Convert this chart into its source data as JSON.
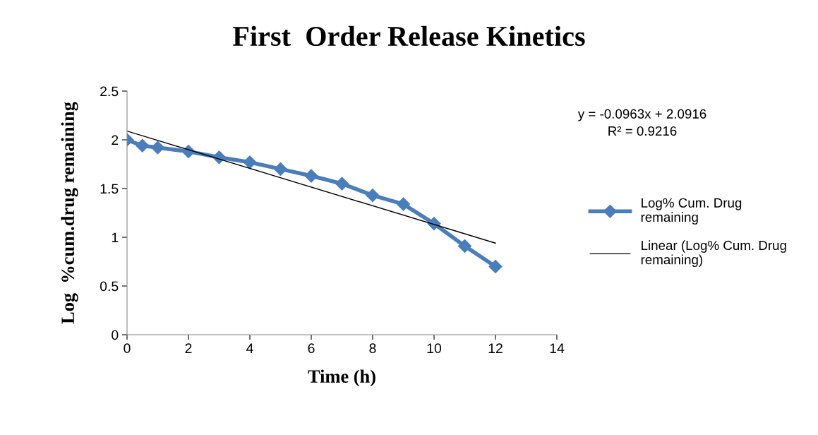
{
  "chart_data": {
    "type": "line",
    "title": "First  Order Release Kinetics",
    "xlabel": "Time (h)",
    "ylabel": "Log  %cum.drug remaining",
    "xlim": [
      0,
      14
    ],
    "xticks": [
      0,
      2,
      4,
      6,
      8,
      10,
      12,
      14
    ],
    "ylim": [
      0,
      2.5
    ],
    "yticks": [
      0,
      0.5,
      1,
      1.5,
      2,
      2.5
    ],
    "grid": false,
    "legend": "right",
    "annotations": [
      "y = -0.0963x + 2.0916\nR² = 0.9216"
    ],
    "series": [
      {
        "name": "Log% Cum. Drug\nremaining",
        "color": "#4a7ebb",
        "marker": "diamond",
        "x": [
          0,
          0.5,
          1,
          2,
          3,
          4,
          5,
          6,
          7,
          8,
          9,
          10,
          11,
          12
        ],
        "values": [
          2.0,
          1.94,
          1.92,
          1.88,
          1.82,
          1.77,
          1.7,
          1.63,
          1.55,
          1.43,
          1.34,
          1.14,
          0.91,
          0.7
        ]
      },
      {
        "name": "Linear (Log% Cum. Drug\nremaining)",
        "color": "#000000",
        "type": "line",
        "marker": "none",
        "x": [
          0,
          12
        ],
        "values": [
          2.09,
          0.94
        ]
      }
    ]
  }
}
